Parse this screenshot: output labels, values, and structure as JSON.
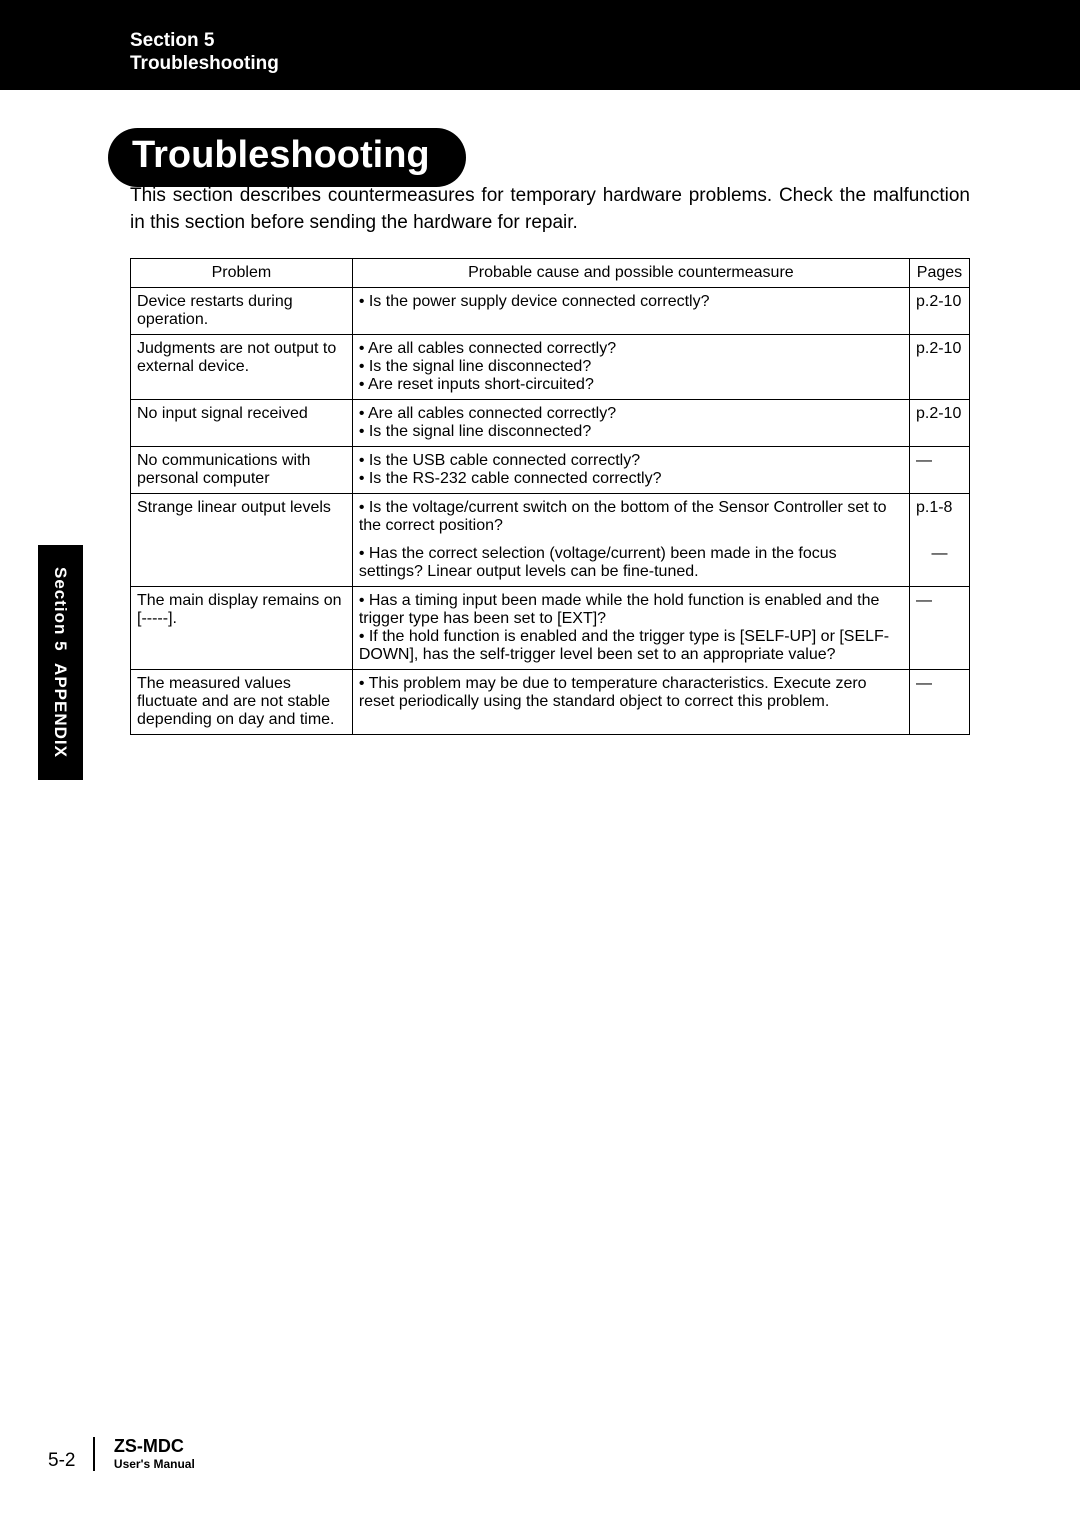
{
  "header": {
    "section_line": "Section 5",
    "title_line": "Troubleshooting"
  },
  "side_tab": {
    "line1": "Section 5",
    "line2": "APPENDIX"
  },
  "page_title": "Troubleshooting",
  "intro": "This section describes countermeasures for temporary hardware problems. Check the malfunction in this section before sending the hardware for repair.",
  "table": {
    "headers": {
      "problem": "Problem",
      "cause": "Probable cause and possible countermeasure",
      "pages": "Pages"
    },
    "rows": {
      "r1": {
        "problem": "Device restarts during operation.",
        "cause": "• Is the power supply device connected correctly?",
        "pages": "p.2-10"
      },
      "r2": {
        "problem": "Judgments are not output to external device.",
        "cause": "• Are all cables connected correctly?\n• Is the signal line disconnected?\n• Are reset inputs short-circuited?",
        "pages": "p.2-10"
      },
      "r3": {
        "problem": "No input signal received",
        "cause": "• Are all cables connected correctly?\n• Is the signal line disconnected?",
        "pages": "p.2-10"
      },
      "r4": {
        "problem": "No communications with personal computer",
        "cause": "• Is the USB cable connected correctly?\n• Is the RS-232 cable connected correctly?",
        "pages": "―"
      },
      "r5": {
        "problem": "Strange linear output levels",
        "cause_a": "• Is the voltage/current switch on the bottom of the Sensor Controller set to the correct position?",
        "pages_a": "p.1-8",
        "cause_b": "• Has the correct selection (voltage/current) been made in the focus settings? Linear output levels can be fine-tuned.",
        "pages_b": "―"
      },
      "r6": {
        "problem": "The main display remains on [-----].",
        "cause": "• Has a timing input been made while the hold function is enabled and the trigger type has been set to [EXT]?\n• If the hold function is enabled and the trigger type is [SELF-UP] or [SELF-DOWN], has the self-trigger level been set to an appropriate value?",
        "pages": "―"
      },
      "r7": {
        "problem": "The measured values fluctuate and are not stable depending on day and time.",
        "cause": "• This problem may be due to temperature characteristics. Execute zero reset periodically using the standard object to correct this problem.",
        "pages": "―"
      }
    }
  },
  "footer": {
    "page_number": "5-2",
    "model": "ZS-MDC",
    "subtitle": "User's Manual"
  }
}
